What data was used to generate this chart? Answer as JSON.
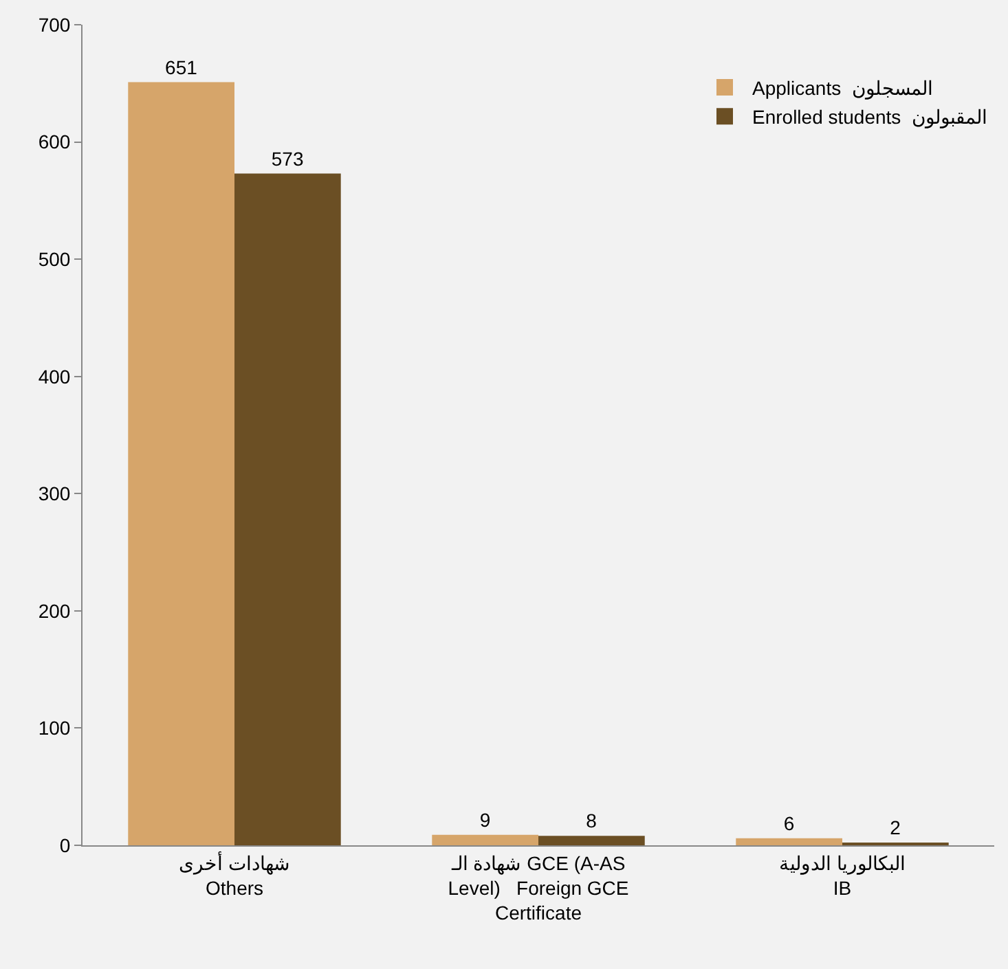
{
  "chart_data": {
    "type": "bar",
    "categories": [
      "شهادات أخرى\nOthers",
      "شهادة الـ GCE (A-AS\nLevel)   Foreign GCE\nCertificate",
      "البكالوريا الدولية\nIB"
    ],
    "series": [
      {
        "name": "Applicants  المسجلون",
        "color": "#d6a56a",
        "values": [
          651,
          9,
          6
        ]
      },
      {
        "name": "Enrolled students  المقبولون",
        "color": "#6b4f24",
        "values": [
          573,
          8,
          2
        ]
      }
    ],
    "ylim": [
      0,
      700
    ],
    "yticks": [
      0,
      100,
      200,
      300,
      400,
      500,
      600,
      700
    ],
    "grid": false,
    "legend": "top right",
    "data_labels": true
  }
}
